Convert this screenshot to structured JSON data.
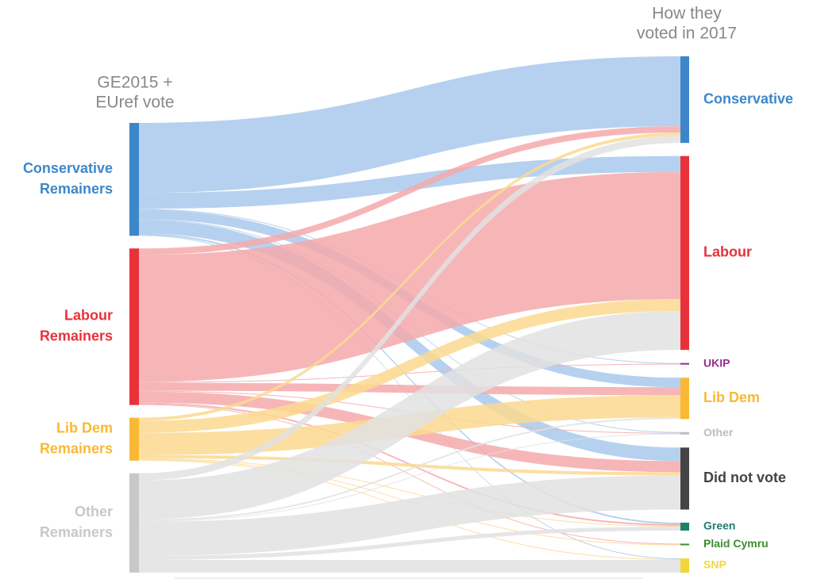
{
  "chart_data": {
    "type": "sankey",
    "left_heading": [
      "GE2015 +",
      "EUref vote"
    ],
    "right_heading": [
      "How they",
      "voted in 2017"
    ],
    "sources": [
      {
        "name": [
          "Conservative",
          "Remainers"
        ],
        "color": "#3d87c9",
        "flow_color": "#a9c9ec"
      },
      {
        "name": [
          "Labour",
          "Remainers"
        ],
        "color": "#e8323a",
        "flow_color": "#f5a9ab"
      },
      {
        "name": [
          "Lib Dem",
          "Remainers"
        ],
        "color": "#f9b934",
        "flow_color": "#fbd98f"
      },
      {
        "name": [
          "Other",
          "Remainers"
        ],
        "color": "#c8c8c8",
        "flow_color": "#e2e2e2"
      }
    ],
    "targets": [
      {
        "name": "Conservative",
        "color": "#3d87c9"
      },
      {
        "name": "Labour",
        "color": "#e8323a"
      },
      {
        "name": "UKIP",
        "color": "#9b2b8e"
      },
      {
        "name": "Lib Dem",
        "color": "#f9b934"
      },
      {
        "name": "Other",
        "color": "#bdbdbd"
      },
      {
        "name": "Did not vote",
        "color": "#444444"
      },
      {
        "name": "Green",
        "color": "#1e7f6e"
      },
      {
        "name": "Plaid Cymru",
        "color": "#3c8c2e"
      },
      {
        "name": "SNP",
        "color": "#f0d83a"
      }
    ],
    "flows": [
      {
        "source": 0,
        "target": 0,
        "value": 88
      },
      {
        "source": 0,
        "target": 1,
        "value": 20
      },
      {
        "source": 0,
        "target": 2,
        "value": 1
      },
      {
        "source": 0,
        "target": 3,
        "value": 12
      },
      {
        "source": 0,
        "target": 4,
        "value": 1
      },
      {
        "source": 0,
        "target": 5,
        "value": 17
      },
      {
        "source": 0,
        "target": 6,
        "value": 2
      },
      {
        "source": 0,
        "target": 8,
        "value": 1
      },
      {
        "source": 1,
        "target": 0,
        "value": 8
      },
      {
        "source": 1,
        "target": 1,
        "value": 160
      },
      {
        "source": 1,
        "target": 2,
        "value": 1
      },
      {
        "source": 1,
        "target": 3,
        "value": 10
      },
      {
        "source": 1,
        "target": 4,
        "value": 1
      },
      {
        "source": 1,
        "target": 5,
        "value": 14
      },
      {
        "source": 1,
        "target": 6,
        "value": 2
      },
      {
        "source": 1,
        "target": 7,
        "value": 1
      },
      {
        "source": 2,
        "target": 0,
        "value": 4
      },
      {
        "source": 2,
        "target": 1,
        "value": 15
      },
      {
        "source": 2,
        "target": 3,
        "value": 28
      },
      {
        "source": 2,
        "target": 5,
        "value": 4
      },
      {
        "source": 2,
        "target": 6,
        "value": 1
      },
      {
        "source": 2,
        "target": 7,
        "value": 1
      },
      {
        "source": 2,
        "target": 8,
        "value": 1
      },
      {
        "source": 3,
        "target": 0,
        "value": 9
      },
      {
        "source": 3,
        "target": 1,
        "value": 49
      },
      {
        "source": 3,
        "target": 3,
        "value": 2
      },
      {
        "source": 3,
        "target": 4,
        "value": 1
      },
      {
        "source": 3,
        "target": 5,
        "value": 43
      },
      {
        "source": 3,
        "target": 6,
        "value": 5
      },
      {
        "source": 3,
        "target": 8,
        "value": 16
      }
    ]
  }
}
